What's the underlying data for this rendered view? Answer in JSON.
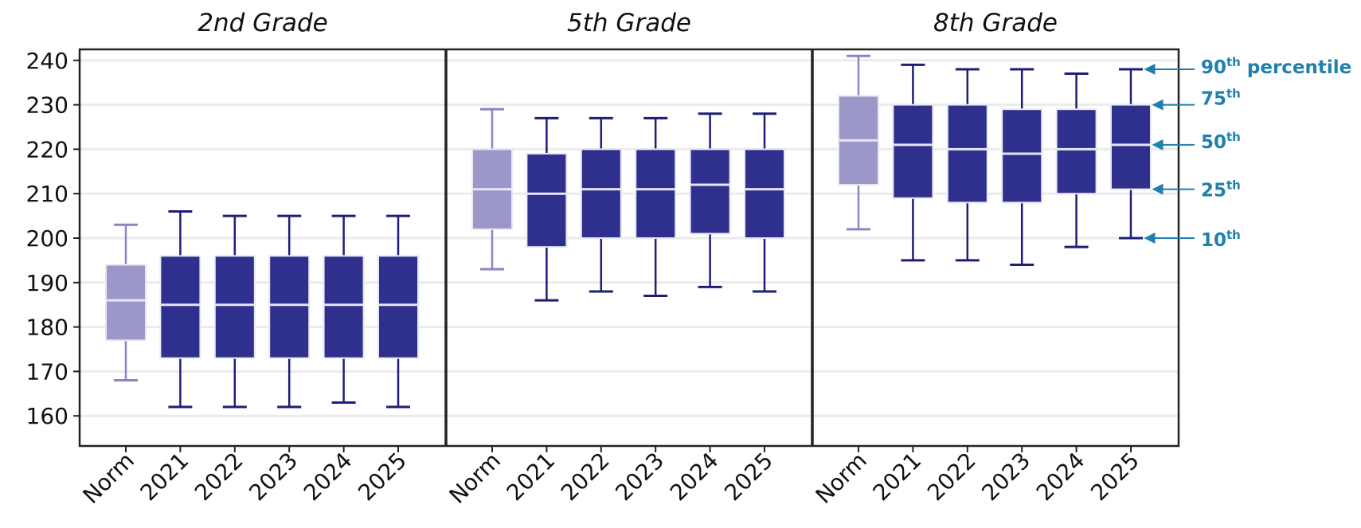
{
  "chart_data": {
    "type": "boxplot",
    "y_ticks": [
      "240",
      "230",
      "220",
      "210",
      "200",
      "190",
      "180",
      "170",
      "160"
    ],
    "ylim": [
      153,
      241
    ],
    "categories": [
      "Norm",
      "2021",
      "2022",
      "2023",
      "2024",
      "2025"
    ],
    "panels": [
      {
        "title": "2nd Grade",
        "boxes": [
          {
            "p10": 168,
            "p25": 177,
            "p50": 186,
            "p75": 194,
            "p90": 203
          },
          {
            "p10": 162,
            "p25": 173,
            "p50": 185,
            "p75": 196,
            "p90": 206
          },
          {
            "p10": 162,
            "p25": 173,
            "p50": 185,
            "p75": 196,
            "p90": 205
          },
          {
            "p10": 162,
            "p25": 173,
            "p50": 185,
            "p75": 196,
            "p90": 205
          },
          {
            "p10": 163,
            "p25": 173,
            "p50": 185,
            "p75": 196,
            "p90": 205
          },
          {
            "p10": 162,
            "p25": 173,
            "p50": 185,
            "p75": 196,
            "p90": 205
          }
        ]
      },
      {
        "title": "5th Grade",
        "boxes": [
          {
            "p10": 193,
            "p25": 202,
            "p50": 211,
            "p75": 220,
            "p90": 229
          },
          {
            "p10": 186,
            "p25": 198,
            "p50": 210,
            "p75": 219,
            "p90": 227
          },
          {
            "p10": 188,
            "p25": 200,
            "p50": 211,
            "p75": 220,
            "p90": 227
          },
          {
            "p10": 187,
            "p25": 200,
            "p50": 211,
            "p75": 220,
            "p90": 227
          },
          {
            "p10": 189,
            "p25": 201,
            "p50": 212,
            "p75": 220,
            "p90": 228
          },
          {
            "p10": 188,
            "p25": 200,
            "p50": 211,
            "p75": 220,
            "p90": 228
          }
        ]
      },
      {
        "title": "8th Grade",
        "boxes": [
          {
            "p10": 202,
            "p25": 212,
            "p50": 222,
            "p75": 232,
            "p90": 241
          },
          {
            "p10": 195,
            "p25": 209,
            "p50": 221,
            "p75": 230,
            "p90": 239
          },
          {
            "p10": 195,
            "p25": 208,
            "p50": 220,
            "p75": 230,
            "p90": 238
          },
          {
            "p10": 194,
            "p25": 208,
            "p50": 219,
            "p75": 229,
            "p90": 238
          },
          {
            "p10": 198,
            "p25": 210,
            "p50": 220,
            "p75": 229,
            "p90": 237
          },
          {
            "p10": 200,
            "p25": 211,
            "p50": 221,
            "p75": 230,
            "p90": 238
          }
        ]
      }
    ],
    "legend": [
      {
        "key": "p90",
        "num": "90",
        "sup": "th",
        "rest": " percentile"
      },
      {
        "key": "p75",
        "num": "75",
        "sup": "th",
        "rest": ""
      },
      {
        "key": "p50",
        "num": "50",
        "sup": "th",
        "rest": ""
      },
      {
        "key": "p25",
        "num": "25",
        "sup": "th",
        "rest": ""
      },
      {
        "key": "p10",
        "num": "10",
        "sup": "th",
        "rest": ""
      }
    ],
    "colors": {
      "norm_box": "#9B97C8",
      "norm_whisker": "#8A86C2",
      "year_box": "#2F2F8E",
      "year_whisker": "#1E1E78",
      "median": "#E6E6F5",
      "gridline": "#EBEBEB",
      "frame": "#222222",
      "legend": "#1F7FAE"
    }
  }
}
